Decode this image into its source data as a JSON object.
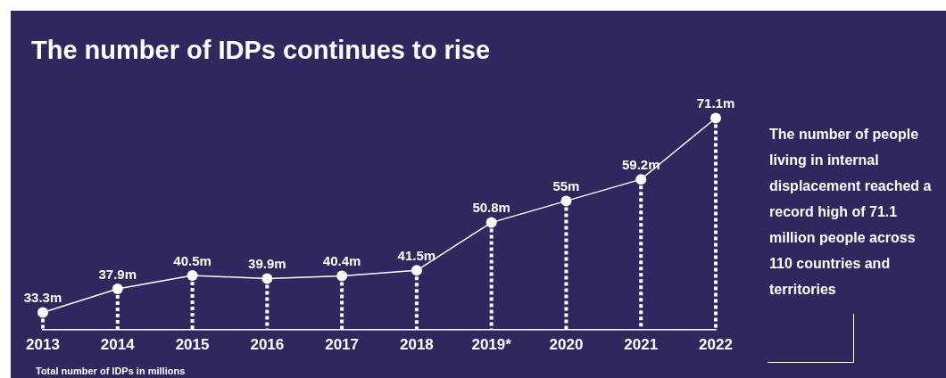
{
  "chart_data": {
    "type": "line",
    "title": "The number of IDPs continues to rise",
    "categories": [
      "2013",
      "2014",
      "2015",
      "2016",
      "2017",
      "2018",
      "2019*",
      "2020",
      "2021",
      "2022"
    ],
    "series": [
      {
        "color": "#ffffff",
        "values": [
          33.3,
          37.9,
          40.5,
          39.9,
          40.4,
          41.5,
          50.8,
          55,
          59.2,
          71.1
        ],
        "value_labels": [
          "33.3m",
          "37.9m",
          "40.5m",
          "39.9m",
          "40.4m",
          "41.5m",
          "50.8m",
          "55m",
          "59.2m",
          "71.1m"
        ]
      }
    ],
    "marker": "circle",
    "grid": "x",
    "legend": false,
    "tick_labels": "x",
    "annotations": [
      "The number of people living in internal displacement reached a record high of 71.1 million people across 110 countries and territories",
      "Total number of IDPs in millions"
    ]
  }
}
